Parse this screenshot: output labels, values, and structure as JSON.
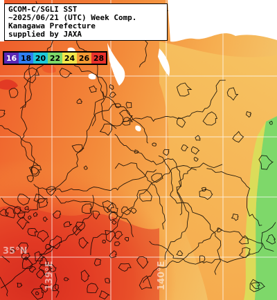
{
  "info": {
    "lines": [
      "GCOM-C/SGLI SST",
      "~2025/06/21 (UTC) Week Comp.",
      "Kanagawa Prefecture",
      "supplied by JAXA"
    ]
  },
  "scale": {
    "values": [
      "16",
      "18",
      "20",
      "22",
      "24",
      "26",
      "28"
    ],
    "colors": [
      "#5a28b4",
      "#2f7ef0",
      "#1ec8d8",
      "#7cd86a",
      "#f2e64a",
      "#f59a34",
      "#e8322c"
    ]
  },
  "axis_labels": {
    "lat": "35°N",
    "lon_left": "139°E",
    "lon_right": "140°E"
  },
  "colors": {
    "land": "#ffffff",
    "warm": "#e8402a",
    "hot": "#d42a1c",
    "mid": "#f2803a",
    "mild": "#f7a84a",
    "cool": "#f2c86a",
    "coastal": "#7ed86a",
    "grid": "#ffffff",
    "contour": "#000000"
  }
}
